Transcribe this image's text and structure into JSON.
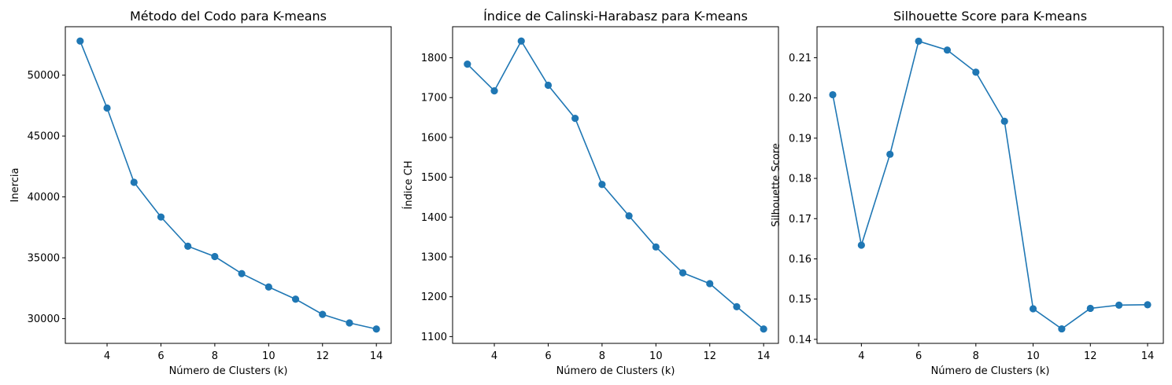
{
  "chart_data": [
    {
      "type": "line",
      "title": "Método del Codo para K-means",
      "xlabel": "Número de Clusters (k)",
      "ylabel": "Inercia",
      "x": [
        3,
        4,
        5,
        6,
        7,
        8,
        9,
        10,
        11,
        12,
        13,
        14
      ],
      "values": [
        52800,
        47300,
        41200,
        38350,
        35950,
        35100,
        33700,
        32600,
        31600,
        30350,
        29650,
        29150
      ],
      "xlim": [
        2.45,
        14.55
      ],
      "ylim": [
        27970,
        53980
      ],
      "xticks": [
        4,
        6,
        8,
        10,
        12,
        14
      ],
      "yticks": [
        30000,
        35000,
        40000,
        45000,
        50000
      ],
      "ytick_labels": [
        "30000",
        "35000",
        "40000",
        "45000",
        "50000"
      ],
      "marker": "circle",
      "color": "#1f77b4",
      "grid": false
    },
    {
      "type": "line",
      "title": "Índice de Calinski-Harabasz para K-means",
      "xlabel": "Número de Clusters (k)",
      "ylabel": "Índice CH",
      "x": [
        3,
        4,
        5,
        6,
        7,
        8,
        9,
        10,
        11,
        12,
        13,
        14
      ],
      "values": [
        1784,
        1717,
        1842,
        1731,
        1648,
        1482,
        1403,
        1325,
        1260,
        1233,
        1175,
        1119
      ],
      "xlim": [
        2.45,
        14.55
      ],
      "ylim": [
        1083,
        1878
      ],
      "xticks": [
        4,
        6,
        8,
        10,
        12,
        14
      ],
      "yticks": [
        1100,
        1200,
        1300,
        1400,
        1500,
        1600,
        1700,
        1800
      ],
      "ytick_labels": [
        "1100",
        "1200",
        "1300",
        "1400",
        "1500",
        "1600",
        "1700",
        "1800"
      ],
      "marker": "circle",
      "color": "#1f77b4",
      "grid": false
    },
    {
      "type": "line",
      "title": "Silhouette Score para K-means",
      "xlabel": "Número de Clusters (k)",
      "ylabel": "Silhouette Score",
      "x": [
        3,
        4,
        5,
        6,
        7,
        8,
        9,
        10,
        11,
        12,
        13,
        14
      ],
      "values": [
        0.2008,
        0.1634,
        0.186,
        0.2141,
        0.2119,
        0.2064,
        0.1942,
        0.1476,
        0.1426,
        0.1477,
        0.1485,
        0.1486
      ],
      "xlim": [
        2.45,
        14.55
      ],
      "ylim": [
        0.139,
        0.2177
      ],
      "xticks": [
        4,
        6,
        8,
        10,
        12,
        14
      ],
      "yticks": [
        0.14,
        0.15,
        0.16,
        0.17,
        0.18,
        0.19,
        0.2,
        0.21
      ],
      "ytick_labels": [
        "0.14",
        "0.15",
        "0.16",
        "0.17",
        "0.18",
        "0.19",
        "0.20",
        "0.21"
      ],
      "marker": "circle",
      "color": "#1f77b4",
      "grid": false
    }
  ]
}
